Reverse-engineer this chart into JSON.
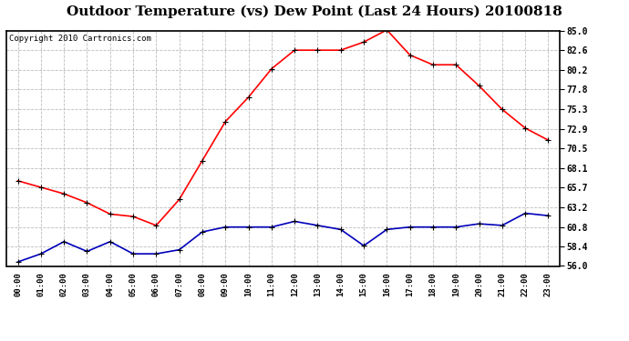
{
  "title": "Outdoor Temperature (vs) Dew Point (Last 24 Hours) 20100818",
  "copyright": "Copyright 2010 Cartronics.com",
  "x_labels": [
    "00:00",
    "01:00",
    "02:00",
    "03:00",
    "04:00",
    "05:00",
    "06:00",
    "07:00",
    "08:00",
    "09:00",
    "10:00",
    "11:00",
    "12:00",
    "13:00",
    "14:00",
    "15:00",
    "16:00",
    "17:00",
    "18:00",
    "19:00",
    "20:00",
    "21:00",
    "22:00",
    "23:00"
  ],
  "temp_data": [
    66.5,
    65.7,
    64.9,
    63.8,
    62.4,
    62.1,
    61.0,
    64.2,
    69.0,
    73.8,
    76.8,
    80.3,
    82.6,
    82.6,
    82.6,
    83.6,
    85.1,
    82.0,
    80.8,
    80.8,
    78.2,
    75.3,
    73.0,
    71.5
  ],
  "dew_data": [
    56.5,
    57.5,
    59.0,
    57.8,
    59.0,
    57.5,
    57.5,
    58.0,
    60.2,
    60.8,
    60.8,
    60.8,
    61.5,
    61.0,
    60.5,
    58.5,
    60.5,
    60.8,
    60.8,
    60.8,
    61.2,
    61.0,
    62.5,
    62.2
  ],
  "y_ticks": [
    56.0,
    58.4,
    60.8,
    63.2,
    65.7,
    68.1,
    70.5,
    72.9,
    75.3,
    77.8,
    80.2,
    82.6,
    85.0
  ],
  "y_min": 56.0,
  "y_max": 85.0,
  "temp_color": "#FF0000",
  "dew_color": "#0000BB",
  "grid_color": "#BBBBBB",
  "bg_color": "#FFFFFF",
  "plot_bg_color": "#FFFFFF",
  "title_fontsize": 11,
  "copyright_fontsize": 6.5
}
